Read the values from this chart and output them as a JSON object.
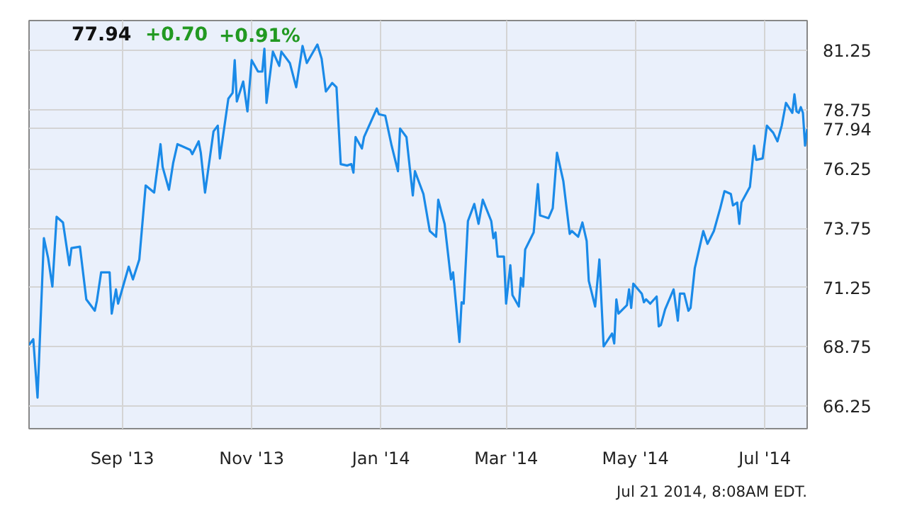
{
  "chart_data": {
    "type": "line",
    "grid": true,
    "marker": "none",
    "line_style": "solid",
    "annotations": [
      "77.94",
      "+0.70",
      "+0.91%",
      "Jul 21 2014, 8:08AM EDT."
    ],
    "xlim": [
      "2013-07-19",
      "2014-07-21"
    ],
    "xticks": [
      {
        "value": "2013-09-01",
        "label": "Sep '13"
      },
      {
        "value": "2013-11-01",
        "label": "Nov '13"
      },
      {
        "value": "2014-01-01",
        "label": "Jan '14"
      },
      {
        "value": "2014-03-01",
        "label": "Mar '14"
      },
      {
        "value": "2014-05-01",
        "label": "May '14"
      },
      {
        "value": "2014-07-01",
        "label": "Jul '14"
      }
    ],
    "ylim": [
      65.3,
      82.5
    ],
    "yticks": [
      66.25,
      68.75,
      71.25,
      73.75,
      76.25,
      77.94,
      78.75,
      81.25
    ],
    "x": [
      "2013-07-19",
      "2013-07-21",
      "2013-07-23",
      "2013-07-26",
      "2013-07-28",
      "2013-07-30",
      "2013-08-01",
      "2013-08-04",
      "2013-08-07",
      "2013-08-08",
      "2013-08-12",
      "2013-08-15",
      "2013-08-19",
      "2013-08-20",
      "2013-08-22",
      "2013-08-26",
      "2013-08-27",
      "2013-08-29",
      "2013-08-30",
      "2013-09-04",
      "2013-09-06",
      "2013-09-09",
      "2013-09-12",
      "2013-09-16",
      "2013-09-19",
      "2013-09-20",
      "2013-09-23",
      "2013-09-25",
      "2013-09-27",
      "2013-10-03",
      "2013-10-04",
      "2013-10-07",
      "2013-10-08",
      "2013-10-10",
      "2013-10-14",
      "2013-10-16",
      "2013-10-17",
      "2013-10-21",
      "2013-10-23",
      "2013-10-24",
      "2013-10-25",
      "2013-10-28",
      "2013-10-30",
      "2013-11-01",
      "2013-11-04",
      "2013-11-06",
      "2013-11-07",
      "2013-11-08",
      "2013-11-11",
      "2013-11-14",
      "2013-11-15",
      "2013-11-19",
      "2013-11-22",
      "2013-11-25",
      "2013-11-27",
      "2013-12-02",
      "2013-12-04",
      "2013-12-06",
      "2013-12-09",
      "2013-12-11",
      "2013-12-13",
      "2013-12-16",
      "2013-12-18",
      "2013-12-19",
      "2013-12-20",
      "2013-12-23",
      "2013-12-24",
      "2013-12-30",
      "2013-12-31",
      "2014-01-03",
      "2014-01-06",
      "2014-01-09",
      "2014-01-10",
      "2014-01-13",
      "2014-01-16",
      "2014-01-17",
      "2014-01-21",
      "2014-01-24",
      "2014-01-27",
      "2014-01-28",
      "2014-01-31",
      "2014-02-03",
      "2014-02-04",
      "2014-02-07",
      "2014-02-08",
      "2014-02-09",
      "2014-02-11",
      "2014-02-14",
      "2014-02-16",
      "2014-02-18",
      "2014-02-22",
      "2014-02-23",
      "2014-02-24",
      "2014-02-25",
      "2014-02-28",
      "2014-03-01",
      "2014-03-03",
      "2014-03-04",
      "2014-03-07",
      "2014-03-08",
      "2014-03-09",
      "2014-03-10",
      "2014-03-14",
      "2014-03-16",
      "2014-03-17",
      "2014-03-21",
      "2014-03-23",
      "2014-03-25",
      "2014-03-28",
      "2014-03-31",
      "2014-04-01",
      "2014-04-04",
      "2014-04-06",
      "2014-04-08",
      "2014-04-09",
      "2014-04-12",
      "2014-04-14",
      "2014-04-16",
      "2014-04-20",
      "2014-04-21",
      "2014-04-22",
      "2014-04-23",
      "2014-04-27",
      "2014-04-28",
      "2014-04-29",
      "2014-04-30",
      "2014-05-04",
      "2014-05-05",
      "2014-05-06",
      "2014-05-08",
      "2014-05-11",
      "2014-05-12",
      "2014-05-13",
      "2014-05-15",
      "2014-05-19",
      "2014-05-21",
      "2014-05-22",
      "2014-05-24",
      "2014-05-26",
      "2014-05-27",
      "2014-05-29",
      "2014-06-02",
      "2014-06-04",
      "2014-06-07",
      "2014-06-10",
      "2014-06-12",
      "2014-06-15",
      "2014-06-16",
      "2014-06-18",
      "2014-06-19",
      "2014-06-20",
      "2014-06-24",
      "2014-06-26",
      "2014-06-27",
      "2014-06-30",
      "2014-07-02",
      "2014-07-05",
      "2014-07-07",
      "2014-07-09",
      "2014-07-11",
      "2014-07-14",
      "2014-07-15",
      "2014-07-16",
      "2014-07-17",
      "2014-07-18",
      "2014-07-19",
      "2014-07-20",
      "2014-07-21"
    ],
    "series": [
      {
        "color": "#1a8ae8",
        "values": [
          68.83,
          69.07,
          66.61,
          73.33,
          72.49,
          71.29,
          74.23,
          73.99,
          72.19,
          72.91,
          72.97,
          70.75,
          70.27,
          70.69,
          71.89,
          71.89,
          70.15,
          71.17,
          70.57,
          72.13,
          71.59,
          72.43,
          75.55,
          75.25,
          77.29,
          76.33,
          75.37,
          76.51,
          77.29,
          77.05,
          76.87,
          77.41,
          76.93,
          75.25,
          77.83,
          78.07,
          76.69,
          79.21,
          79.45,
          80.83,
          79.09,
          79.93,
          78.67,
          80.83,
          80.35,
          80.35,
          81.31,
          79.03,
          81.19,
          80.59,
          81.19,
          80.71,
          79.69,
          81.43,
          80.71,
          81.49,
          80.89,
          79.51,
          79.87,
          79.69,
          76.45,
          76.39,
          76.45,
          76.09,
          77.59,
          77.11,
          77.59,
          78.79,
          78.55,
          78.49,
          77.23,
          76.15,
          77.95,
          77.59,
          75.13,
          76.15,
          75.19,
          73.63,
          73.39,
          74.95,
          73.93,
          71.59,
          71.89,
          68.95,
          70.63,
          70.57,
          74.05,
          74.77,
          73.93,
          74.95,
          74.05,
          73.33,
          73.57,
          72.55,
          72.55,
          70.57,
          72.19,
          70.93,
          70.45,
          71.65,
          71.29,
          72.85,
          73.57,
          75.61,
          74.29,
          74.17,
          74.59,
          76.93,
          75.73,
          73.51,
          73.63,
          73.39,
          73.99,
          73.21,
          71.53,
          70.45,
          72.43,
          68.77,
          69.31,
          68.89,
          70.75,
          70.15,
          70.51,
          71.17,
          70.39,
          71.41,
          70.99,
          70.63,
          70.75,
          70.57,
          70.87,
          69.61,
          69.67,
          70.33,
          71.17,
          69.85,
          70.99,
          70.99,
          70.27,
          70.39,
          72.07,
          73.63,
          73.09,
          73.63,
          74.59,
          75.31,
          75.19,
          74.71,
          74.83,
          73.93,
          74.83,
          75.49,
          77.23,
          76.63,
          76.69,
          78.07,
          77.77,
          77.41,
          78.07,
          79.03,
          78.61,
          79.39,
          78.67,
          78.61,
          78.85,
          78.61,
          77.23,
          77.94
        ]
      }
    ]
  }
}
